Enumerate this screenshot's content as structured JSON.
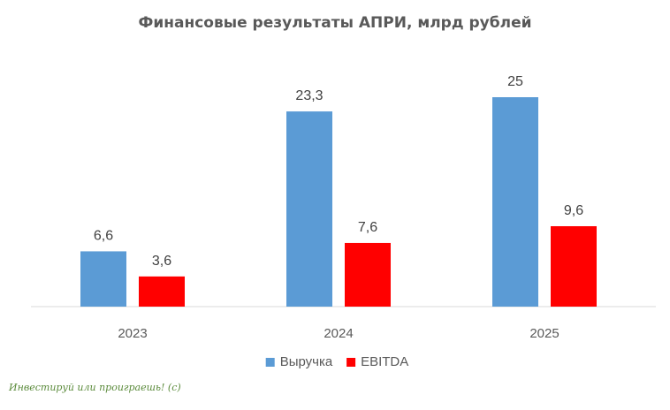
{
  "chart_data": {
    "type": "bar",
    "title": "Финансовые результаты АПРИ, млрд рублей",
    "categories": [
      "2023",
      "2024",
      "2025"
    ],
    "series": [
      {
        "name": "Выручка",
        "color": "#5b9bd5",
        "values": [
          6.6,
          23.3,
          25
        ],
        "labels": [
          "6,6",
          "23,3",
          "25"
        ]
      },
      {
        "name": "EBITDA",
        "color": "#ff0000",
        "values": [
          3.6,
          7.6,
          9.6
        ],
        "labels": [
          "3,6",
          "7,6",
          "9,6"
        ]
      }
    ],
    "ylim": [
      0,
      28
    ],
    "grid": false,
    "legend": "bottom"
  },
  "watermark": "Инвестируй или проиграешь! (с)"
}
